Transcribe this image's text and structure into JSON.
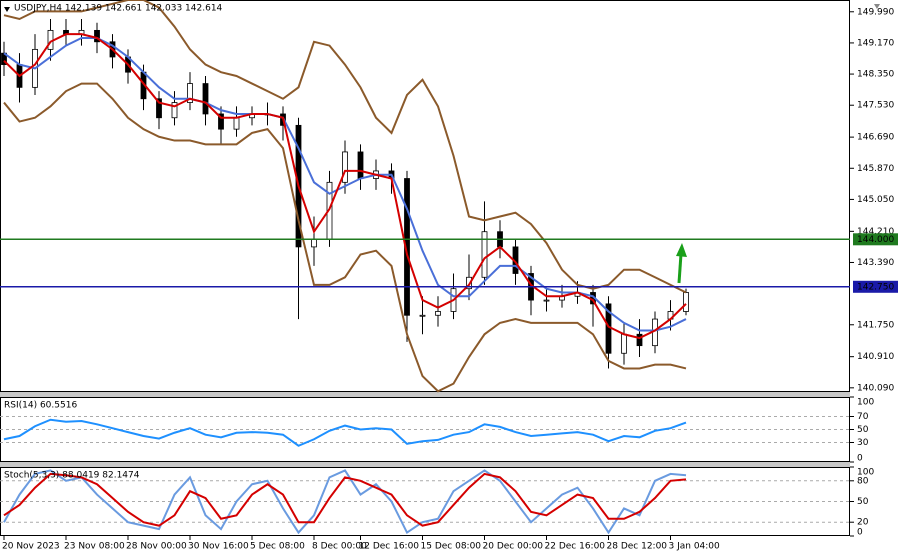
{
  "chart_data": [
    {
      "type": "candlestick",
      "title": "USDJPY,H4  142.139 142.661 142.033 142.614",
      "categories": [
        "20 Nov 2023",
        null,
        null,
        null,
        "23 Nov 08:00",
        null,
        null,
        null,
        "28 Nov 00:00",
        null,
        null,
        null,
        "30 Nov 16:00",
        null,
        null,
        null,
        "5 Dec 08:00",
        null,
        null,
        null,
        "8 Dec 00:00",
        null,
        null,
        "12 Dec 16:00",
        null,
        null,
        null,
        "15 Dec 08:00",
        null,
        null,
        null,
        "20 Dec 00:00",
        null,
        null,
        null,
        "22 Dec 16:00",
        null,
        null,
        null,
        "28 Dec 12:00",
        null,
        null,
        null,
        "3 Jan 04:00",
        null
      ],
      "open": [
        148.9,
        148.6,
        148.0,
        149.0,
        149.5,
        149.4,
        149.5,
        149.2,
        148.8,
        148.4,
        147.7,
        147.2,
        147.6,
        148.1,
        147.3,
        146.9,
        147.2,
        147.3,
        147.3,
        147.0,
        143.8,
        144.0,
        145.5,
        146.3,
        145.6,
        145.8,
        145.6,
        142.0,
        142.0,
        142.1,
        142.7,
        143.0,
        144.2,
        143.8,
        143.1,
        142.4,
        142.4,
        142.5,
        142.6,
        142.3,
        141.0,
        141.5,
        141.2,
        141.9,
        142.1
      ],
      "high": [
        149.2,
        148.9,
        149.4,
        149.8,
        149.8,
        149.8,
        149.7,
        149.4,
        149.0,
        148.6,
        147.9,
        147.9,
        148.4,
        148.3,
        147.5,
        147.5,
        147.5,
        147.6,
        147.5,
        147.2,
        144.6,
        145.8,
        146.6,
        146.5,
        146.1,
        146.0,
        145.8,
        142.5,
        142.5,
        143.1,
        143.6,
        145.0,
        144.5,
        144.0,
        143.3,
        142.7,
        142.8,
        142.9,
        142.8,
        142.5,
        141.8,
        141.9,
        142.1,
        142.4,
        142.7
      ],
      "low": [
        148.3,
        147.6,
        147.8,
        148.7,
        149.1,
        149.1,
        148.9,
        148.5,
        148.1,
        147.4,
        146.9,
        147.0,
        147.4,
        147.0,
        146.5,
        146.7,
        147.0,
        147.0,
        146.6,
        141.9,
        143.3,
        143.8,
        145.2,
        145.3,
        145.3,
        145.2,
        141.3,
        141.5,
        141.7,
        141.9,
        142.4,
        142.8,
        143.5,
        142.8,
        142.0,
        142.1,
        142.2,
        142.3,
        141.7,
        140.6,
        140.7,
        140.9,
        141.0,
        141.6,
        142.0
      ],
      "close": [
        148.6,
        148.0,
        149.0,
        149.5,
        149.4,
        149.5,
        149.2,
        148.8,
        148.4,
        147.7,
        147.2,
        147.6,
        148.1,
        147.3,
        146.9,
        147.2,
        147.3,
        147.3,
        147.0,
        143.8,
        144.0,
        145.5,
        146.3,
        145.6,
        145.8,
        145.6,
        142.0,
        142.0,
        142.1,
        142.7,
        143.0,
        144.2,
        143.8,
        143.1,
        142.4,
        142.4,
        142.5,
        142.6,
        142.3,
        141.0,
        141.5,
        141.2,
        141.9,
        142.1,
        142.6
      ],
      "series": [
        {
          "color": "#8b5a2b",
          "values": [
            149.9,
            149.8,
            150.0,
            150.0,
            150.0,
            150.0,
            150.1,
            150.2,
            150.3,
            150.3,
            150.1,
            149.6,
            149.0,
            148.6,
            148.4,
            148.3,
            148.1,
            147.9,
            147.7,
            148.0,
            149.2,
            149.1,
            148.6,
            148.0,
            147.2,
            146.8,
            147.8,
            148.2,
            147.5,
            146.2,
            144.6,
            144.5,
            144.6,
            144.7,
            144.4,
            143.9,
            143.2,
            142.8,
            142.7,
            142.8,
            143.2,
            143.2,
            143.0,
            142.8,
            142.6
          ]
        },
        {
          "color": "#8b5a2b",
          "values": [
            147.6,
            147.1,
            147.2,
            147.5,
            147.9,
            148.1,
            148.1,
            147.7,
            147.2,
            146.9,
            146.7,
            146.6,
            146.6,
            146.5,
            146.5,
            146.5,
            146.8,
            146.9,
            146.4,
            144.5,
            142.8,
            142.8,
            143.0,
            143.6,
            143.7,
            143.3,
            141.5,
            140.4,
            140.0,
            140.2,
            140.9,
            141.5,
            141.8,
            141.9,
            141.8,
            141.8,
            141.8,
            141.8,
            141.5,
            140.8,
            140.6,
            140.6,
            140.7,
            140.7,
            140.6
          ]
        },
        {
          "color": "#4a6fd8",
          "values": [
            148.9,
            148.6,
            148.5,
            148.8,
            149.1,
            149.3,
            149.3,
            149.1,
            148.8,
            148.4,
            148.0,
            147.7,
            147.7,
            147.6,
            147.4,
            147.3,
            147.3,
            147.3,
            147.2,
            146.4,
            145.5,
            145.2,
            145.4,
            145.6,
            145.7,
            145.7,
            144.8,
            143.7,
            142.8,
            142.5,
            142.5,
            142.9,
            143.3,
            143.3,
            143.0,
            142.7,
            142.6,
            142.6,
            142.5,
            142.1,
            141.8,
            141.6,
            141.6,
            141.7,
            141.9
          ]
        },
        {
          "color": "#d40000",
          "values": [
            148.7,
            148.3,
            148.6,
            149.2,
            149.4,
            149.4,
            149.3,
            149.0,
            148.6,
            148.1,
            147.6,
            147.5,
            147.7,
            147.6,
            147.2,
            147.2,
            147.3,
            147.3,
            147.2,
            145.4,
            144.2,
            144.8,
            145.8,
            145.8,
            145.7,
            145.6,
            143.6,
            142.4,
            142.2,
            142.4,
            142.8,
            143.5,
            143.8,
            143.4,
            142.8,
            142.5,
            142.5,
            142.6,
            142.4,
            141.7,
            141.5,
            141.4,
            141.6,
            141.9,
            142.3
          ]
        }
      ],
      "levels": [
        {
          "value": 144.0,
          "label": "144.000",
          "color": "#1f7a1f"
        },
        {
          "value": 142.75,
          "label": "142.750",
          "color": "#1a1aa8"
        }
      ],
      "ylim": [
        139.98,
        150.3
      ],
      "yticks": [
        {
          "value": 149.99,
          "label": "149.990"
        },
        {
          "value": 149.17,
          "label": "149.170"
        },
        {
          "value": 148.35,
          "label": "148.350"
        },
        {
          "value": 147.53,
          "label": "147.530"
        },
        {
          "value": 146.69,
          "label": "146.690"
        },
        {
          "value": 145.87,
          "label": "145.870"
        },
        {
          "value": 145.05,
          "label": "145.050"
        },
        {
          "value": 144.21,
          "label": "144.210"
        },
        {
          "value": 143.39,
          "label": "143.390"
        },
        {
          "value": 141.75,
          "label": "141.750"
        },
        {
          "value": 140.91,
          "label": "140.910"
        },
        {
          "value": 140.09,
          "label": "140.090"
        }
      ],
      "grid": false
    },
    {
      "type": "line",
      "title": "RSI(14) 60.5516",
      "series": [
        {
          "color": "#1e90ff",
          "values": [
            35,
            40,
            55,
            65,
            62,
            63,
            58,
            52,
            46,
            40,
            36,
            45,
            52,
            42,
            38,
            45,
            46,
            45,
            42,
            25,
            35,
            48,
            56,
            50,
            52,
            50,
            28,
            32,
            34,
            42,
            46,
            58,
            54,
            46,
            40,
            42,
            44,
            46,
            42,
            32,
            40,
            38,
            48,
            52,
            60.6
          ]
        }
      ],
      "ylim": [
        0,
        100
      ],
      "yticks": [
        100,
        70,
        50,
        30,
        0
      ],
      "grid": true
    },
    {
      "type": "line",
      "title": "Stoch(5,3,3) 88.0419 82.1474",
      "series": [
        {
          "color": "#6a9be0",
          "values": [
            20,
            60,
            90,
            95,
            80,
            85,
            60,
            40,
            20,
            15,
            10,
            60,
            85,
            30,
            10,
            50,
            75,
            80,
            40,
            5,
            30,
            85,
            95,
            60,
            75,
            50,
            5,
            20,
            25,
            65,
            80,
            95,
            80,
            50,
            20,
            40,
            60,
            70,
            40,
            5,
            40,
            30,
            80,
            90,
            88.0
          ]
        },
        {
          "color": "#d40000",
          "values": [
            30,
            45,
            70,
            90,
            88,
            85,
            75,
            55,
            35,
            20,
            15,
            30,
            65,
            55,
            25,
            30,
            60,
            75,
            60,
            20,
            20,
            55,
            85,
            80,
            70,
            60,
            30,
            15,
            20,
            45,
            70,
            90,
            85,
            65,
            35,
            30,
            45,
            60,
            55,
            25,
            25,
            35,
            55,
            80,
            82.1
          ]
        }
      ],
      "ylim": [
        0,
        100
      ],
      "yticks": [
        100,
        80,
        50,
        20,
        0
      ],
      "grid": true
    }
  ]
}
